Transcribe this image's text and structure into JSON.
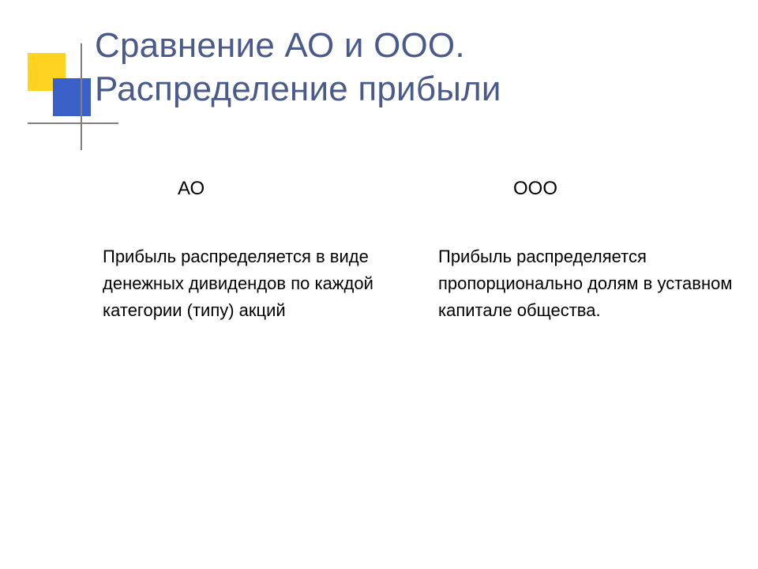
{
  "title_line1": "Сравнение АО и ООО.",
  "title_line2": "Распределение прибыли",
  "left": {
    "header": "АО",
    "body": "Прибыль распределяется в виде денежных дивидендов по каждой категории (типу) акций"
  },
  "right": {
    "header": "ООО",
    "body": "Прибыль распределяется пропорционально долям в уставном капитале общества."
  },
  "colors": {
    "title": "#4a5a8a",
    "yellow": "#ffd320",
    "blue": "#3a60c8",
    "line": "#808080",
    "text": "#000000",
    "background": "#ffffff"
  },
  "fonts": {
    "title_size": 44,
    "header_size": 24,
    "body_size": 22
  }
}
